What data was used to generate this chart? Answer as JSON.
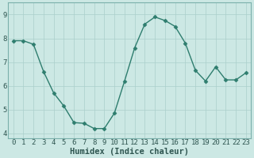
{
  "x": [
    0,
    1,
    2,
    3,
    4,
    5,
    6,
    7,
    8,
    9,
    10,
    11,
    12,
    13,
    14,
    15,
    16,
    17,
    18,
    19,
    20,
    21,
    22,
    23
  ],
  "y": [
    7.9,
    7.9,
    7.75,
    6.6,
    5.7,
    5.15,
    4.45,
    4.42,
    4.2,
    4.2,
    4.85,
    6.2,
    7.6,
    8.6,
    8.9,
    8.75,
    8.5,
    7.8,
    6.65,
    6.2,
    6.8,
    6.25,
    6.25,
    6.55
  ],
  "line_color": "#2e7d6e",
  "bg_color": "#cce8e4",
  "grid_major_color": "#aacfcb",
  "grid_minor_color": "#bbddd9",
  "xlabel": "Humidex (Indice chaleur)",
  "xlim": [
    -0.5,
    23.5
  ],
  "ylim": [
    3.8,
    9.5
  ],
  "yticks": [
    4,
    5,
    6,
    7,
    8,
    9
  ],
  "xticks": [
    0,
    1,
    2,
    3,
    4,
    5,
    6,
    7,
    8,
    9,
    10,
    11,
    12,
    13,
    14,
    15,
    16,
    17,
    18,
    19,
    20,
    21,
    22,
    23
  ],
  "markersize": 2.5,
  "linewidth": 1.0,
  "xlabel_fontsize": 7.5,
  "tick_fontsize": 6.5,
  "spine_color": "#7ab0ab"
}
